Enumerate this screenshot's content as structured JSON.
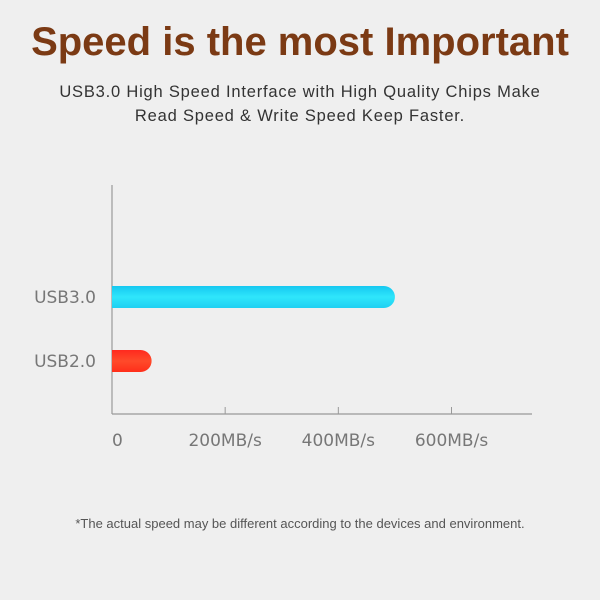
{
  "title": "Speed is the most Important",
  "subtitle_line1": "USB3.0 High Speed Interface with High Quality Chips Make",
  "subtitle_line2": "Read Speed & Write Speed Keep Faster.",
  "footnote": "*The actual speed may be different according to the devices and environment.",
  "chart_data": {
    "type": "bar",
    "orientation": "horizontal",
    "categories": [
      "USB3.0",
      "USB2.0"
    ],
    "values": [
      500,
      70
    ],
    "colors": [
      "#22d8f5",
      "#ff3a1f"
    ],
    "xlim": [
      0,
      720
    ],
    "xticks": [
      0,
      200,
      400,
      600
    ],
    "xtick_labels": [
      "0",
      "200MB/s",
      "400MB/s",
      "600MB/s"
    ],
    "grid": false
  }
}
